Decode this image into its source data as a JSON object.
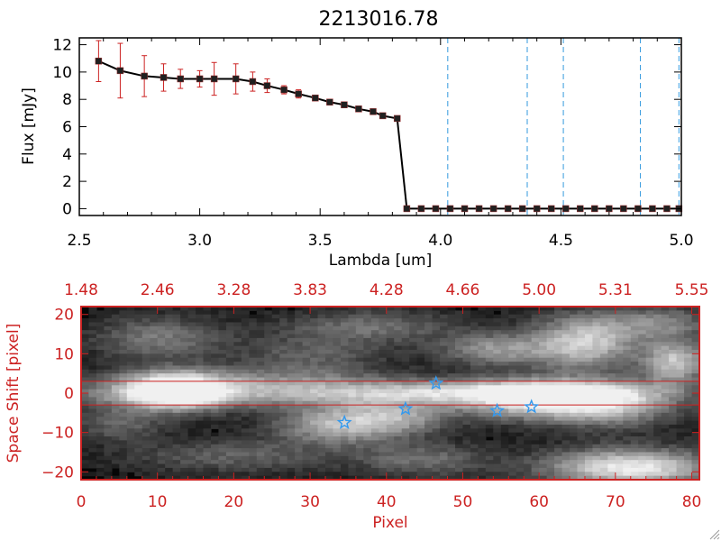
{
  "chart_data": [
    {
      "type": "line",
      "title": "2213016.78",
      "xlabel": "Lambda [um]",
      "ylabel": "Flux [mJy]",
      "xlim": [
        2.5,
        5.0
      ],
      "ylim": [
        -0.5,
        12.5
      ],
      "x_ticks": [
        "2.5",
        "3.0",
        "3.5",
        "4.0",
        "4.5",
        "5.0"
      ],
      "y_ticks": [
        "0",
        "2",
        "4",
        "6",
        "8",
        "10",
        "12"
      ],
      "series": [
        {
          "name": "flux",
          "x": [
            2.58,
            2.67,
            2.77,
            2.85,
            2.92,
            3.0,
            3.06,
            3.15,
            3.22,
            3.28,
            3.35,
            3.41,
            3.48,
            3.54,
            3.6,
            3.66,
            3.72,
            3.76,
            3.82,
            3.86,
            3.92,
            3.98,
            4.04,
            4.1,
            4.16,
            4.22,
            4.28,
            4.34,
            4.4,
            4.46,
            4.52,
            4.58,
            4.64,
            4.7,
            4.76,
            4.82,
            4.88,
            4.94,
            4.99
          ],
          "y": [
            10.8,
            10.1,
            9.7,
            9.6,
            9.5,
            9.5,
            9.5,
            9.5,
            9.3,
            9.0,
            8.7,
            8.4,
            8.1,
            7.8,
            7.6,
            7.3,
            7.1,
            6.8,
            6.6,
            0.0,
            0.0,
            0.0,
            0.0,
            0.0,
            0.0,
            0.0,
            0.0,
            0.0,
            0.0,
            0.0,
            0.0,
            0.0,
            0.0,
            0.0,
            0.0,
            0.0,
            0.0,
            0.0,
            0.0
          ],
          "yerr": [
            1.5,
            2.0,
            1.5,
            1.0,
            0.7,
            0.6,
            1.2,
            1.1,
            0.7,
            0.5,
            0.3,
            0.3,
            0.2,
            0.2,
            0.2,
            0.2,
            0.2,
            0.2,
            0.2,
            0.1,
            0.1,
            0.1,
            0.1,
            0.1,
            0.1,
            0.1,
            0.1,
            0.1,
            0.1,
            0.1,
            0.1,
            0.1,
            0.1,
            0.1,
            0.1,
            0.1,
            0.1,
            0.1,
            0.1
          ]
        }
      ],
      "vertical_lines": [
        4.03,
        4.36,
        4.51,
        4.83,
        4.99
      ],
      "colors": {
        "marker": "#202020",
        "line": "#000000",
        "errorbar": "#cc2222",
        "vline": "#3399dd"
      }
    },
    {
      "type": "heatmap",
      "xlabel": "Pixel",
      "ylabel": "Space Shift [pixel]",
      "xlim": [
        0,
        81
      ],
      "ylim": [
        -22,
        22
      ],
      "x_ticks": [
        "0",
        "10",
        "20",
        "30",
        "40",
        "50",
        "60",
        "70",
        "80"
      ],
      "y_ticks": [
        "−20",
        "−10",
        "0",
        "10",
        "20"
      ],
      "top_axis_labels": [
        "1.48",
        "2.46",
        "3.28",
        "3.83",
        "4.28",
        "4.66",
        "5.00",
        "5.31",
        "5.55"
      ],
      "extraction_lines": [
        3,
        -3
      ],
      "star_markers": [
        {
          "x": 34.5,
          "y": -7.5
        },
        {
          "x": 42.5,
          "y": -4.0
        },
        {
          "x": 46.5,
          "y": 2.5
        },
        {
          "x": 54.5,
          "y": -4.5
        },
        {
          "x": 59.0,
          "y": -3.5
        }
      ],
      "blobs": [
        {
          "x": 12,
          "y": 0.5,
          "sx": 5,
          "sy": 3.5,
          "a": 1.0
        },
        {
          "x": 30,
          "y": 0,
          "sx": 25,
          "sy": 2.5,
          "a": 0.55
        },
        {
          "x": 55,
          "y": 0.5,
          "sx": 14,
          "sy": 2,
          "a": 0.35
        },
        {
          "x": 34,
          "y": -8,
          "sx": 6,
          "sy": 3.5,
          "a": 0.65
        },
        {
          "x": 42,
          "y": -6,
          "sx": 5,
          "sy": 3,
          "a": 0.4
        },
        {
          "x": 60,
          "y": -2,
          "sx": 7,
          "sy": 3.5,
          "a": 0.75
        },
        {
          "x": 70,
          "y": -3,
          "sx": 6,
          "sy": 4,
          "a": 0.55
        },
        {
          "x": 66,
          "y": 13,
          "sx": 5,
          "sy": 5,
          "a": 0.75
        },
        {
          "x": 54,
          "y": 11,
          "sx": 5,
          "sy": 3,
          "a": 0.5
        },
        {
          "x": 78,
          "y": 8,
          "sx": 3,
          "sy": 4,
          "a": 0.7
        },
        {
          "x": 72,
          "y": -19,
          "sx": 8,
          "sy": 3.5,
          "a": 0.9
        },
        {
          "x": 30,
          "y": 9,
          "sx": 7,
          "sy": 4,
          "a": 0.3
        },
        {
          "x": 10,
          "y": 14,
          "sx": 6,
          "sy": 4,
          "a": 0.4
        },
        {
          "x": 38,
          "y": 17,
          "sx": 8,
          "sy": 3,
          "a": 0.35
        },
        {
          "x": 20,
          "y": -16,
          "sx": 10,
          "sy": 3,
          "a": 0.3
        },
        {
          "x": 45,
          "y": -17,
          "sx": 6,
          "sy": 3,
          "a": 0.35
        },
        {
          "x": 5,
          "y": -8,
          "sx": 4,
          "sy": 3,
          "a": 0.3
        },
        {
          "x": 76,
          "y": 18,
          "sx": 5,
          "sy": 3,
          "a": 0.4
        },
        {
          "x": 22,
          "y": 4,
          "sx": 12,
          "sy": 2,
          "a": 0.2
        }
      ],
      "colors": {
        "axis": "#cc2222",
        "star": "#3399ee",
        "line": "#cc2222"
      }
    }
  ]
}
